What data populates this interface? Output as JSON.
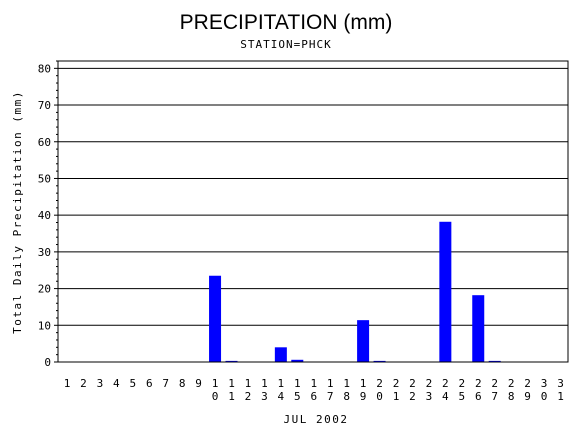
{
  "chart_data": {
    "type": "bar",
    "title": "PRECIPITATION (mm)",
    "subtitle": "STATION=PHCK",
    "xlabel": "JUL 2002",
    "ylabel": "Total Daily Precipitation (mm)",
    "ylim": [
      0,
      82
    ],
    "yticks": [
      0,
      10,
      20,
      30,
      40,
      50,
      60,
      70,
      80
    ],
    "grid": true,
    "bar_color": "#0000ff",
    "categories": [
      "1",
      "2",
      "3",
      "4",
      "5",
      "6",
      "7",
      "8",
      "9",
      "10",
      "11",
      "12",
      "13",
      "14",
      "15",
      "16",
      "17",
      "18",
      "19",
      "20",
      "21",
      "22",
      "23",
      "24",
      "25",
      "26",
      "27",
      "28",
      "29",
      "30",
      "31"
    ],
    "values": [
      0,
      0,
      0,
      0,
      0,
      0,
      0,
      0,
      0,
      23.5,
      0.3,
      0,
      0,
      4.0,
      0.6,
      0,
      0,
      0,
      11.4,
      0.3,
      0,
      0,
      0,
      38.2,
      0,
      18.2,
      0.3,
      0,
      0,
      0,
      0
    ]
  }
}
